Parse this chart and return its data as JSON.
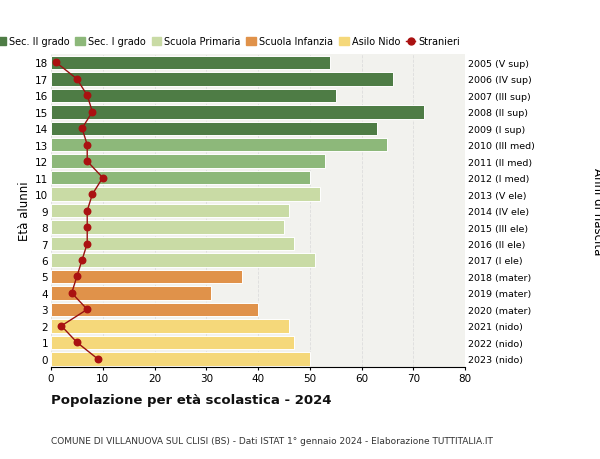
{
  "ages": [
    0,
    1,
    2,
    3,
    4,
    5,
    6,
    7,
    8,
    9,
    10,
    11,
    12,
    13,
    14,
    15,
    16,
    17,
    18
  ],
  "anni_nascita": [
    "2023 (nido)",
    "2022 (nido)",
    "2021 (nido)",
    "2020 (mater)",
    "2019 (mater)",
    "2018 (mater)",
    "2017 (I ele)",
    "2016 (II ele)",
    "2015 (III ele)",
    "2014 (IV ele)",
    "2013 (V ele)",
    "2012 (I med)",
    "2011 (II med)",
    "2010 (III med)",
    "2009 (I sup)",
    "2008 (II sup)",
    "2007 (III sup)",
    "2006 (IV sup)",
    "2005 (V sup)"
  ],
  "bar_values": [
    50,
    47,
    46,
    40,
    31,
    37,
    51,
    47,
    45,
    46,
    52,
    50,
    53,
    65,
    63,
    72,
    55,
    66,
    54
  ],
  "bar_colors": [
    "#f5d87a",
    "#f5d87a",
    "#f5d87a",
    "#e0924a",
    "#e0924a",
    "#e0924a",
    "#c9dba5",
    "#c9dba5",
    "#c9dba5",
    "#c9dba5",
    "#c9dba5",
    "#8db87a",
    "#8db87a",
    "#8db87a",
    "#4e7c45",
    "#4e7c45",
    "#4e7c45",
    "#4e7c45",
    "#4e7c45"
  ],
  "stranieri": [
    9,
    5,
    2,
    7,
    4,
    5,
    6,
    7,
    7,
    7,
    8,
    10,
    7,
    7,
    6,
    8,
    7,
    5,
    1
  ],
  "legend_labels": [
    "Sec. II grado",
    "Sec. I grado",
    "Scuola Primaria",
    "Scuola Infanzia",
    "Asilo Nido",
    "Stranieri"
  ],
  "legend_colors": [
    "#4e7c45",
    "#8db87a",
    "#c9dba5",
    "#e0924a",
    "#f5d87a",
    "#aa1111"
  ],
  "ylabel_left": "Età alunni",
  "ylabel_right": "Anni di nascita",
  "xlim": [
    0,
    80
  ],
  "xticks": [
    0,
    10,
    20,
    30,
    40,
    50,
    60,
    70,
    80
  ],
  "title": "Popolazione per età scolastica - 2024",
  "subtitle": "COMUNE DI VILLANUOVA SUL CLISI (BS) - Dati ISTAT 1° gennaio 2024 - Elaborazione TUTTITALIA.IT",
  "background_color": "#ffffff",
  "plot_bg_color": "#f2f2ee",
  "grid_color": "#dddddd",
  "bar_height": 0.82
}
